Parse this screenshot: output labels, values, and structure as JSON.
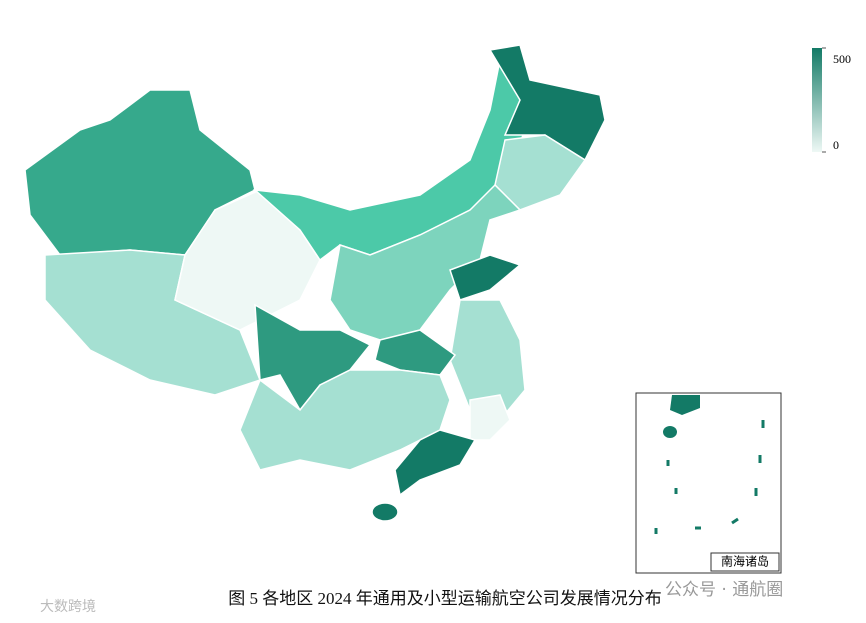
{
  "legend": {
    "range": [
      0,
      500
    ],
    "ticks": [
      0,
      500
    ],
    "colors": [
      "#eef8f5",
      "#137a66"
    ]
  },
  "caption": "图 5 各地区 2024 年通用及小型运输航空公司发展情况分布",
  "inset_label": "南海诸岛",
  "watermarks": [
    "大数跨境",
    "公众号 · 通航圈"
  ]
}
